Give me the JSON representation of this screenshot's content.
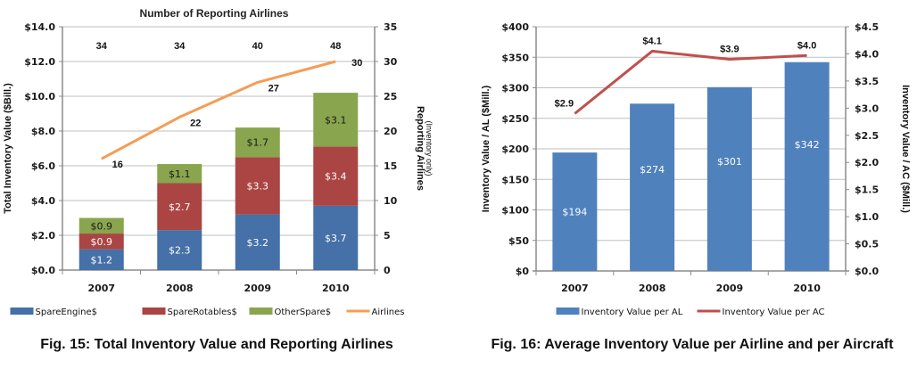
{
  "chart_data": [
    {
      "type": "bar",
      "subtype": "stacked-bar-with-line",
      "title": "Number of Reporting Airlines",
      "caption": "Fig. 15: Total Inventory Value and Reporting Airlines",
      "categories": [
        "2007",
        "2008",
        "2009",
        "2010"
      ],
      "ylabel": "Total Inventory Value ($Bill.)",
      "ylim": [
        0,
        14
      ],
      "yticks": [
        0,
        2,
        4,
        6,
        8,
        10,
        12,
        14
      ],
      "ytick_labels": [
        "$0.0",
        "$2.0",
        "$4.0",
        "$6.0",
        "$8.0",
        "$10.0",
        "$12.0",
        "$14.0"
      ],
      "y2label": "Reporting Airlines",
      "y2sublabel": "(Inventory only)",
      "y2lim": [
        0,
        35
      ],
      "y2ticks": [
        0,
        5,
        10,
        15,
        20,
        25,
        30,
        35
      ],
      "y2tick_labels": [
        "0",
        "5",
        "10",
        "15",
        "20",
        "25",
        "30",
        "35"
      ],
      "grid": true,
      "legend_position": "bottom",
      "series": [
        {
          "name": "SpareEngine$",
          "kind": "bar",
          "axis": "left",
          "color": "#4570a8",
          "values": [
            1.2,
            2.3,
            3.2,
            3.7
          ],
          "labels": [
            "$1.2",
            "$2.3",
            "$3.2",
            "$3.7"
          ],
          "label_color": "#ffffff"
        },
        {
          "name": "SpareRotables$",
          "kind": "bar",
          "axis": "left",
          "color": "#aa4543",
          "values": [
            0.9,
            2.7,
            3.3,
            3.4
          ],
          "labels": [
            "$0.9",
            "$2.7",
            "$3.3",
            "$3.4"
          ],
          "label_color": "#ffffff"
        },
        {
          "name": "OtherSpare$",
          "kind": "bar",
          "axis": "left",
          "color": "#89a54e",
          "values": [
            0.9,
            1.1,
            1.7,
            3.1
          ],
          "labels": [
            "$0.9",
            "$1.1",
            "$1.7",
            "$3.1"
          ],
          "label_color": "#1a1a1a"
        },
        {
          "name": "Airlines",
          "kind": "line",
          "axis": "right",
          "color": "#f59d56",
          "values": [
            16,
            22,
            27,
            30
          ],
          "labels": [
            "16",
            "22",
            "27",
            "30"
          ]
        }
      ],
      "top_annotations": [
        "34",
        "34",
        "40",
        "48"
      ]
    },
    {
      "type": "bar",
      "subtype": "bar-with-line",
      "title": "",
      "caption": "Fig. 16: Average Inventory Value per Airline and per Aircraft",
      "categories": [
        "2007",
        "2008",
        "2009",
        "2010"
      ],
      "ylabel": "Inventory Value / AL ($Mill.)",
      "ylim": [
        0,
        400
      ],
      "yticks": [
        0,
        50,
        100,
        150,
        200,
        250,
        300,
        350,
        400
      ],
      "ytick_labels": [
        "$0",
        "$50",
        "$100",
        "$150",
        "$200",
        "$250",
        "$300",
        "$350",
        "$400"
      ],
      "y2label": "Inventory Value / AC ($Mill.)",
      "y2lim": [
        0,
        4.5
      ],
      "y2ticks": [
        0,
        0.5,
        1.0,
        1.5,
        2.0,
        2.5,
        3.0,
        3.5,
        4.0,
        4.5
      ],
      "y2tick_labels": [
        "$0.0",
        "$0.5",
        "$1.0",
        "$1.5",
        "$2.0",
        "$2.5",
        "$3.0",
        "$3.5",
        "$4.0",
        "$4.5"
      ],
      "grid": true,
      "legend_position": "bottom",
      "series": [
        {
          "name": "Inventory Value per AL",
          "kind": "bar",
          "axis": "left",
          "color": "#4f81bd",
          "values": [
            194,
            274,
            301,
            342
          ],
          "labels": [
            "$194",
            "$274",
            "$301",
            "$342"
          ],
          "label_color": "#ffffff"
        },
        {
          "name": "Inventory Value per AC",
          "kind": "line",
          "axis": "right",
          "color": "#c0504d",
          "values": [
            2.9,
            4.05,
            3.9,
            3.97
          ],
          "labels": [
            "$2.9",
            "$4.1",
            "$3.9",
            "$4.0"
          ]
        }
      ]
    }
  ]
}
